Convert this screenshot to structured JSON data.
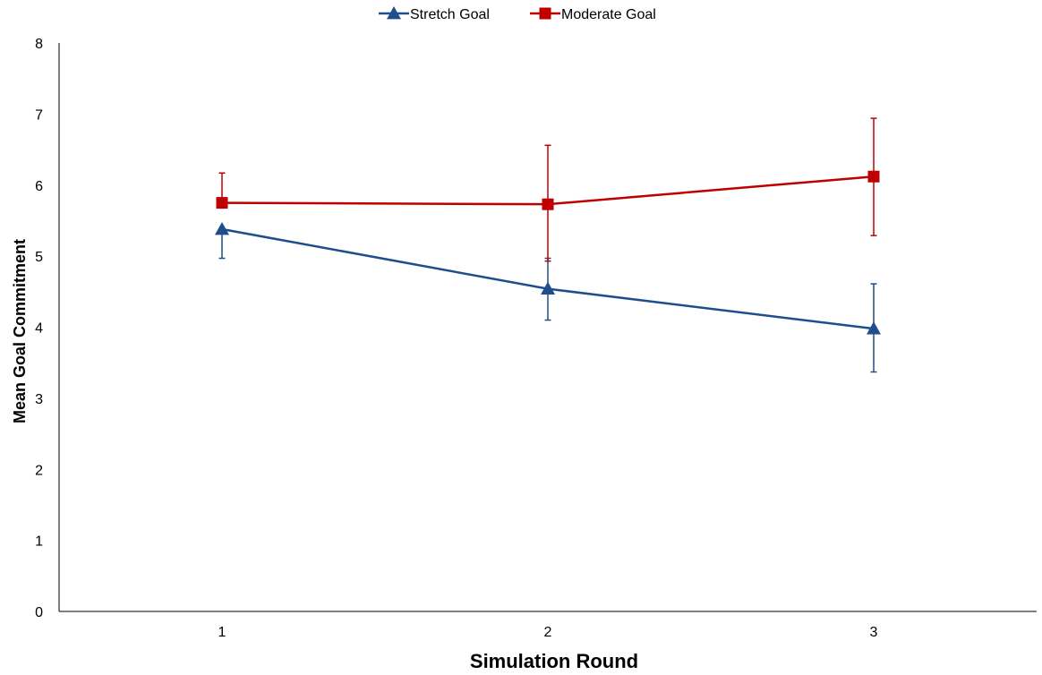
{
  "chart_data": {
    "type": "line",
    "title": "",
    "xlabel": "Simulation Round",
    "ylabel": "Mean Goal Commitment",
    "categories": [
      "1",
      "2",
      "3"
    ],
    "ylim": [
      0,
      8
    ],
    "yticks": [
      "0",
      "1",
      "2",
      "3",
      "4",
      "5",
      "6",
      "7",
      "8"
    ],
    "grid": false,
    "legend_position": "top-center",
    "series": [
      {
        "name": "Stretch Goal",
        "marker": "triangle",
        "color": "#1f4e8c",
        "values": [
          5.38,
          4.54,
          3.98
        ],
        "error_low": [
          4.97,
          4.1,
          3.37
        ],
        "error_high": [
          5.38,
          4.97,
          4.61
        ]
      },
      {
        "name": "Moderate Goal",
        "marker": "square",
        "color": "#c00000",
        "values": [
          5.75,
          5.73,
          6.12
        ],
        "error_low": [
          5.75,
          4.93,
          5.29
        ],
        "error_high": [
          6.17,
          6.56,
          6.94
        ]
      }
    ]
  }
}
